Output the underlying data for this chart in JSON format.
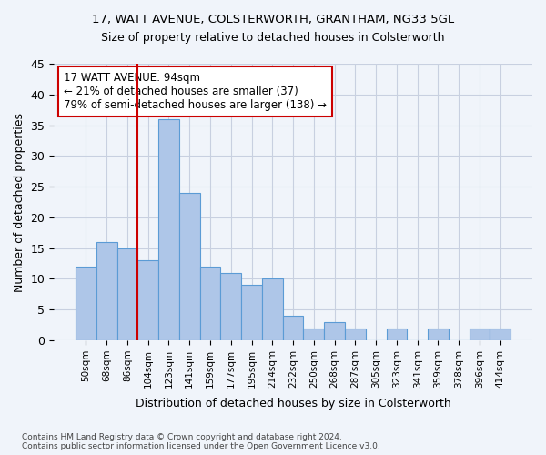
{
  "title1": "17, WATT AVENUE, COLSTERWORTH, GRANTHAM, NG33 5GL",
  "title2": "Size of property relative to detached houses in Colsterworth",
  "xlabel": "Distribution of detached houses by size in Colsterworth",
  "ylabel": "Number of detached properties",
  "bins": [
    "50sqm",
    "68sqm",
    "86sqm",
    "104sqm",
    "123sqm",
    "141sqm",
    "159sqm",
    "177sqm",
    "195sqm",
    "214sqm",
    "232sqm",
    "250sqm",
    "268sqm",
    "287sqm",
    "305sqm",
    "323sqm",
    "341sqm",
    "359sqm",
    "378sqm",
    "396sqm",
    "414sqm"
  ],
  "values": [
    12,
    16,
    15,
    13,
    36,
    24,
    12,
    11,
    9,
    10,
    4,
    2,
    3,
    2,
    0,
    2,
    0,
    2,
    0,
    2,
    2
  ],
  "bar_color": "#aec6e8",
  "bar_edge_color": "#5b9bd5",
  "vline_color": "#cc0000",
  "vline_pos": 2.5,
  "annotation_text": "17 WATT AVENUE: 94sqm\n← 21% of detached houses are smaller (37)\n79% of semi-detached houses are larger (138) →",
  "annotation_box_color": "#ffffff",
  "annotation_box_edge": "#cc0000",
  "ylim": [
    0,
    45
  ],
  "yticks": [
    0,
    5,
    10,
    15,
    20,
    25,
    30,
    35,
    40,
    45
  ],
  "footer": "Contains HM Land Registry data © Crown copyright and database right 2024.\nContains public sector information licensed under the Open Government Licence v3.0.",
  "bg_color": "#f0f4fa",
  "grid_color": "#c8d0e0"
}
